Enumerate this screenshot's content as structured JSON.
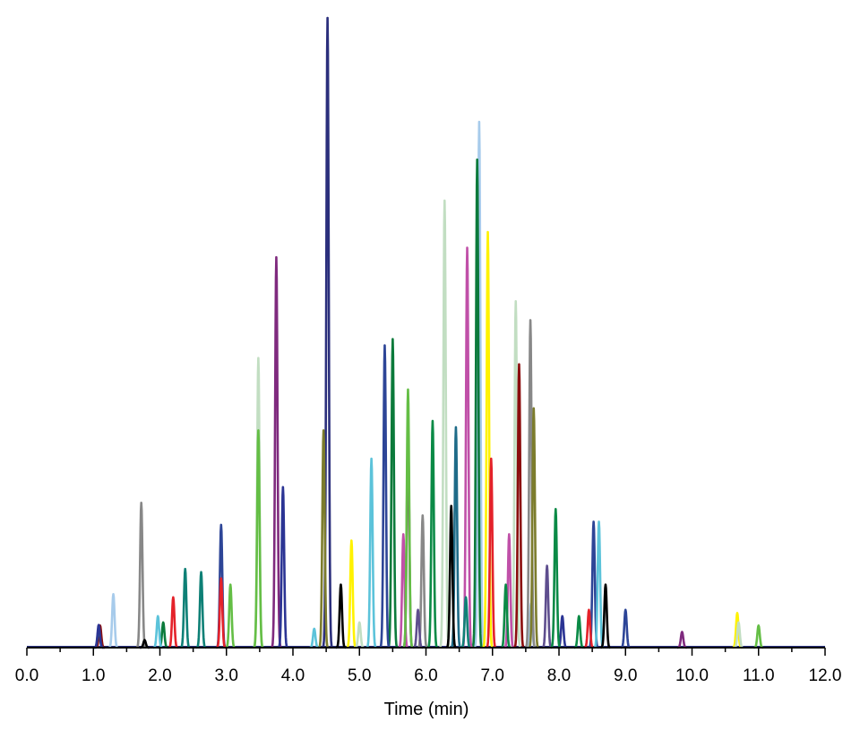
{
  "chart_data": {
    "type": "line",
    "title": "",
    "xlabel": "Time (min)",
    "ylabel": "",
    "xlim": [
      0.0,
      12.0
    ],
    "ylim": [
      0,
      100
    ],
    "x_ticks": [
      "0.0",
      "1.0",
      "2.0",
      "3.0",
      "4.0",
      "5.0",
      "6.0",
      "7.0",
      "8.0",
      "9.0",
      "10.0",
      "11.0",
      "12.0"
    ],
    "grid": false,
    "legend": "none",
    "baseline_color": "#2B3380",
    "series": [
      {
        "color": "#2B2F7C",
        "peaks": [
          [
            4.52,
            100
          ]
        ]
      },
      {
        "color": "#A7CBEB",
        "peaks": [
          [
            6.8,
            83.5
          ],
          [
            1.3,
            8.5
          ],
          [
            7.58,
            7
          ]
        ]
      },
      {
        "color": "#0B7A3B",
        "peaks": [
          [
            6.77,
            77.5
          ],
          [
            5.5,
            49
          ],
          [
            2.05,
            4
          ]
        ]
      },
      {
        "color": "#FFF200",
        "peaks": [
          [
            6.93,
            66
          ],
          [
            4.88,
            17
          ],
          [
            10.68,
            5.5
          ]
        ]
      },
      {
        "color": "#C2DEC2",
        "peaks": [
          [
            6.28,
            71
          ],
          [
            3.48,
            46
          ],
          [
            7.35,
            55
          ],
          [
            10.7,
            4
          ],
          [
            5.0,
            4
          ]
        ]
      },
      {
        "color": "#C050A8",
        "peaks": [
          [
            6.62,
            63.5
          ],
          [
            7.25,
            18
          ],
          [
            5.66,
            18
          ]
        ]
      },
      {
        "color": "#7F2A7E",
        "peaks": [
          [
            3.75,
            62
          ],
          [
            5.73,
            35
          ],
          [
            9.85,
            2.5
          ]
        ]
      },
      {
        "color": "#888888",
        "peaks": [
          [
            7.57,
            52
          ],
          [
            1.72,
            23
          ],
          [
            5.95,
            21
          ]
        ]
      },
      {
        "color": "#2D4597",
        "peaks": [
          [
            5.38,
            48
          ],
          [
            2.92,
            19.5
          ],
          [
            8.52,
            20
          ],
          [
            9.0,
            6
          ]
        ]
      },
      {
        "color": "#64BE45",
        "peaks": [
          [
            5.73,
            41
          ],
          [
            3.48,
            34.5
          ],
          [
            3.06,
            10
          ],
          [
            11.0,
            3.5
          ]
        ]
      },
      {
        "color": "#8B0D0D",
        "peaks": [
          [
            7.4,
            45
          ],
          [
            1.1,
            3.5
          ]
        ]
      },
      {
        "color": "#7C7C2C",
        "peaks": [
          [
            4.46,
            34.5
          ],
          [
            7.62,
            38
          ]
        ]
      },
      {
        "color": "#1E6B88",
        "peaks": [
          [
            6.45,
            35
          ],
          [
            1.08,
            3
          ]
        ]
      },
      {
        "color": "#E4222A",
        "peaks": [
          [
            6.98,
            30
          ],
          [
            2.92,
            11
          ],
          [
            2.2,
            8
          ],
          [
            8.45,
            6
          ]
        ]
      },
      {
        "color": "#2B3494",
        "peaks": [
          [
            3.85,
            25.5
          ],
          [
            1.08,
            3.6
          ],
          [
            8.05,
            5
          ]
        ]
      },
      {
        "color": "#5CC3DA",
        "peaks": [
          [
            5.18,
            30
          ],
          [
            8.6,
            20
          ],
          [
            1.97,
            5
          ],
          [
            4.32,
            3
          ]
        ]
      },
      {
        "color": "#000000",
        "peaks": [
          [
            6.38,
            22.5
          ],
          [
            4.72,
            10
          ],
          [
            8.7,
            10
          ],
          [
            1.77,
            1.2
          ]
        ]
      },
      {
        "color": "#0E8076",
        "peaks": [
          [
            2.38,
            12.5
          ],
          [
            2.62,
            12
          ],
          [
            6.6,
            8
          ]
        ]
      },
      {
        "color": "#5E4E8E",
        "peaks": [
          [
            5.88,
            6
          ],
          [
            7.82,
            13
          ]
        ]
      },
      {
        "color": "#0A8A46",
        "peaks": [
          [
            7.95,
            22
          ],
          [
            6.1,
            36
          ],
          [
            7.2,
            10
          ],
          [
            8.3,
            5
          ]
        ]
      }
    ]
  }
}
